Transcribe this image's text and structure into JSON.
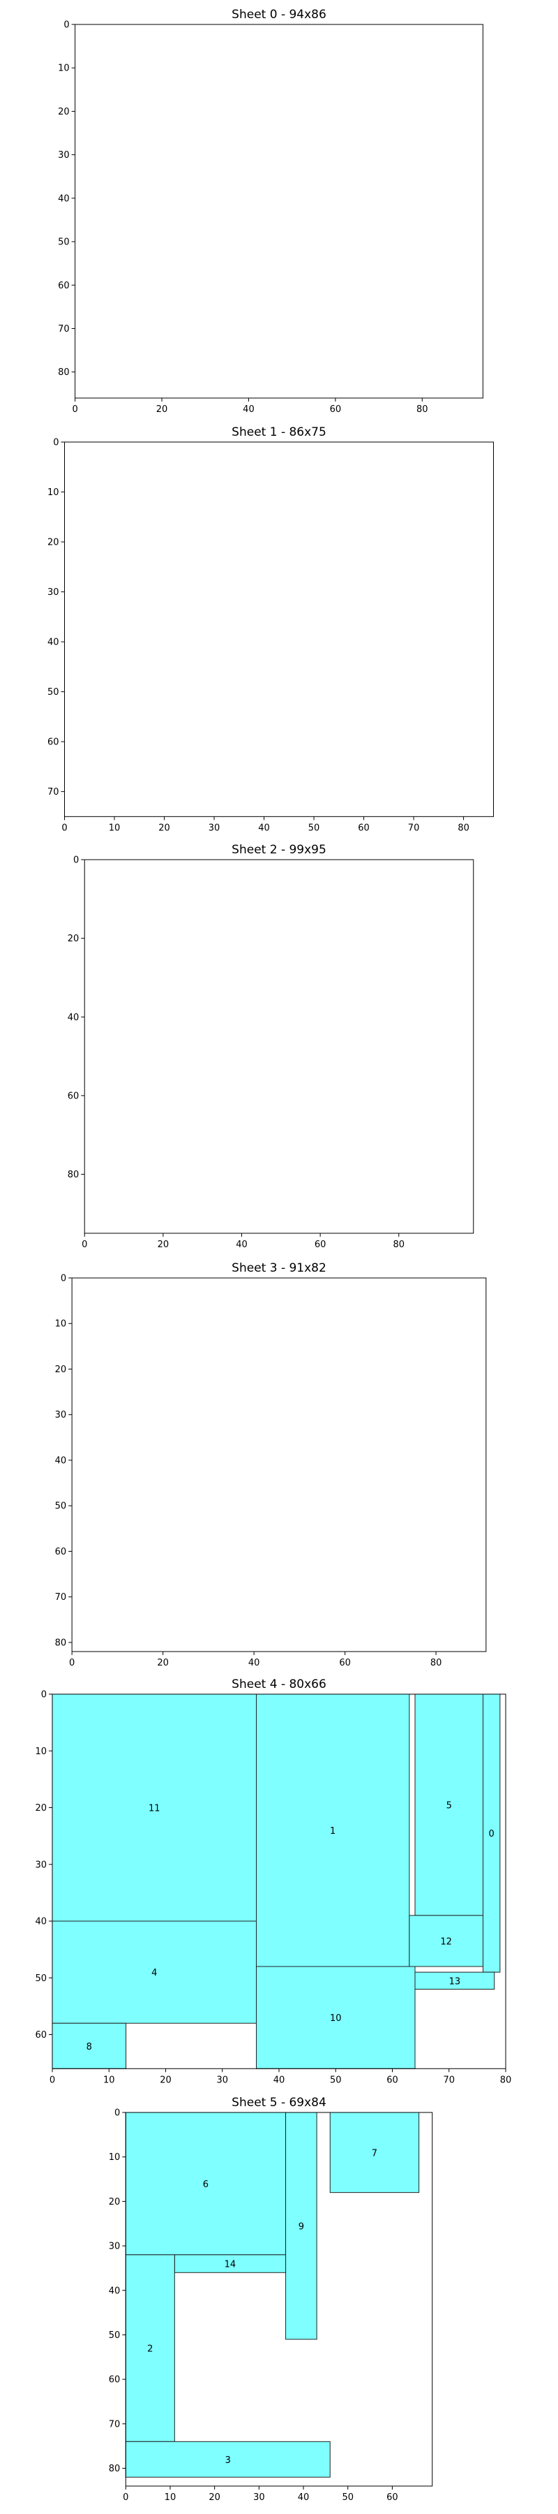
{
  "colors": {
    "piece_fill": "#7fffff",
    "piece_stroke": "#222222",
    "axis": "#000000"
  },
  "chart_data": [
    {
      "type": "rectangle-packing",
      "title": "Sheet 0 - 94x86",
      "xlim": [
        0,
        94
      ],
      "ylim": [
        0,
        86
      ],
      "y_inverted": true,
      "x_ticks": [
        0,
        20,
        40,
        60,
        80
      ],
      "y_ticks": [
        0,
        10,
        20,
        30,
        40,
        50,
        60,
        70,
        80
      ],
      "pieces": []
    },
    {
      "type": "rectangle-packing",
      "title": "Sheet 1 - 86x75",
      "xlim": [
        0,
        86
      ],
      "ylim": [
        0,
        75
      ],
      "y_inverted": true,
      "x_ticks": [
        0,
        10,
        20,
        30,
        40,
        50,
        60,
        70,
        80
      ],
      "y_ticks": [
        0,
        10,
        20,
        30,
        40,
        50,
        60,
        70
      ],
      "pieces": []
    },
    {
      "type": "rectangle-packing",
      "title": "Sheet 2 - 99x95",
      "xlim": [
        0,
        99
      ],
      "ylim": [
        0,
        95
      ],
      "y_inverted": true,
      "x_ticks": [
        0,
        20,
        40,
        60,
        80
      ],
      "y_ticks": [
        0,
        20,
        40,
        60,
        80
      ],
      "pieces": []
    },
    {
      "type": "rectangle-packing",
      "title": "Sheet 3 - 91x82",
      "xlim": [
        0,
        91
      ],
      "ylim": [
        0,
        82
      ],
      "y_inverted": true,
      "x_ticks": [
        0,
        20,
        40,
        60,
        80
      ],
      "y_ticks": [
        0,
        10,
        20,
        30,
        40,
        50,
        60,
        70,
        80
      ],
      "pieces": []
    },
    {
      "type": "rectangle-packing",
      "title": "Sheet 4 - 80x66",
      "xlim": [
        0,
        80
      ],
      "ylim": [
        0,
        66
      ],
      "y_inverted": true,
      "x_ticks": [
        0,
        10,
        20,
        30,
        40,
        50,
        60,
        70,
        80
      ],
      "y_ticks": [
        0,
        10,
        20,
        30,
        40,
        50,
        60
      ],
      "pieces": [
        {
          "label": "11",
          "x": 0,
          "y": 0,
          "w": 36,
          "h": 40
        },
        {
          "label": "1",
          "x": 36,
          "y": 0,
          "w": 27,
          "h": 48
        },
        {
          "label": "5",
          "x": 64,
          "y": 0,
          "w": 12,
          "h": 39
        },
        {
          "label": "0",
          "x": 76,
          "y": 0,
          "w": 3,
          "h": 49
        },
        {
          "label": "4",
          "x": 0,
          "y": 40,
          "w": 36,
          "h": 18
        },
        {
          "label": "12",
          "x": 63,
          "y": 39,
          "w": 13,
          "h": 9
        },
        {
          "label": "13",
          "x": 64,
          "y": 49,
          "w": 14,
          "h": 3
        },
        {
          "label": "10",
          "x": 36,
          "y": 48,
          "w": 28,
          "h": 18
        },
        {
          "label": "8",
          "x": 0,
          "y": 58,
          "w": 13,
          "h": 8
        }
      ]
    },
    {
      "type": "rectangle-packing",
      "title": "Sheet 5 - 69x84",
      "xlim": [
        0,
        69
      ],
      "ylim": [
        0,
        84
      ],
      "y_inverted": true,
      "x_ticks": [
        0,
        10,
        20,
        30,
        40,
        50,
        60
      ],
      "y_ticks": [
        0,
        10,
        20,
        30,
        40,
        50,
        60,
        70,
        80
      ],
      "pieces": [
        {
          "label": "6",
          "x": 0,
          "y": 0,
          "w": 36,
          "h": 32
        },
        {
          "label": "9",
          "x": 36,
          "y": 0,
          "w": 7,
          "h": 51
        },
        {
          "label": "7",
          "x": 46,
          "y": 0,
          "w": 20,
          "h": 18
        },
        {
          "label": "14",
          "x": 11,
          "y": 32,
          "w": 25,
          "h": 4
        },
        {
          "label": "2",
          "x": 0,
          "y": 32,
          "w": 11,
          "h": 42
        },
        {
          "label": "3",
          "x": 0,
          "y": 74,
          "w": 46,
          "h": 8
        }
      ]
    }
  ]
}
